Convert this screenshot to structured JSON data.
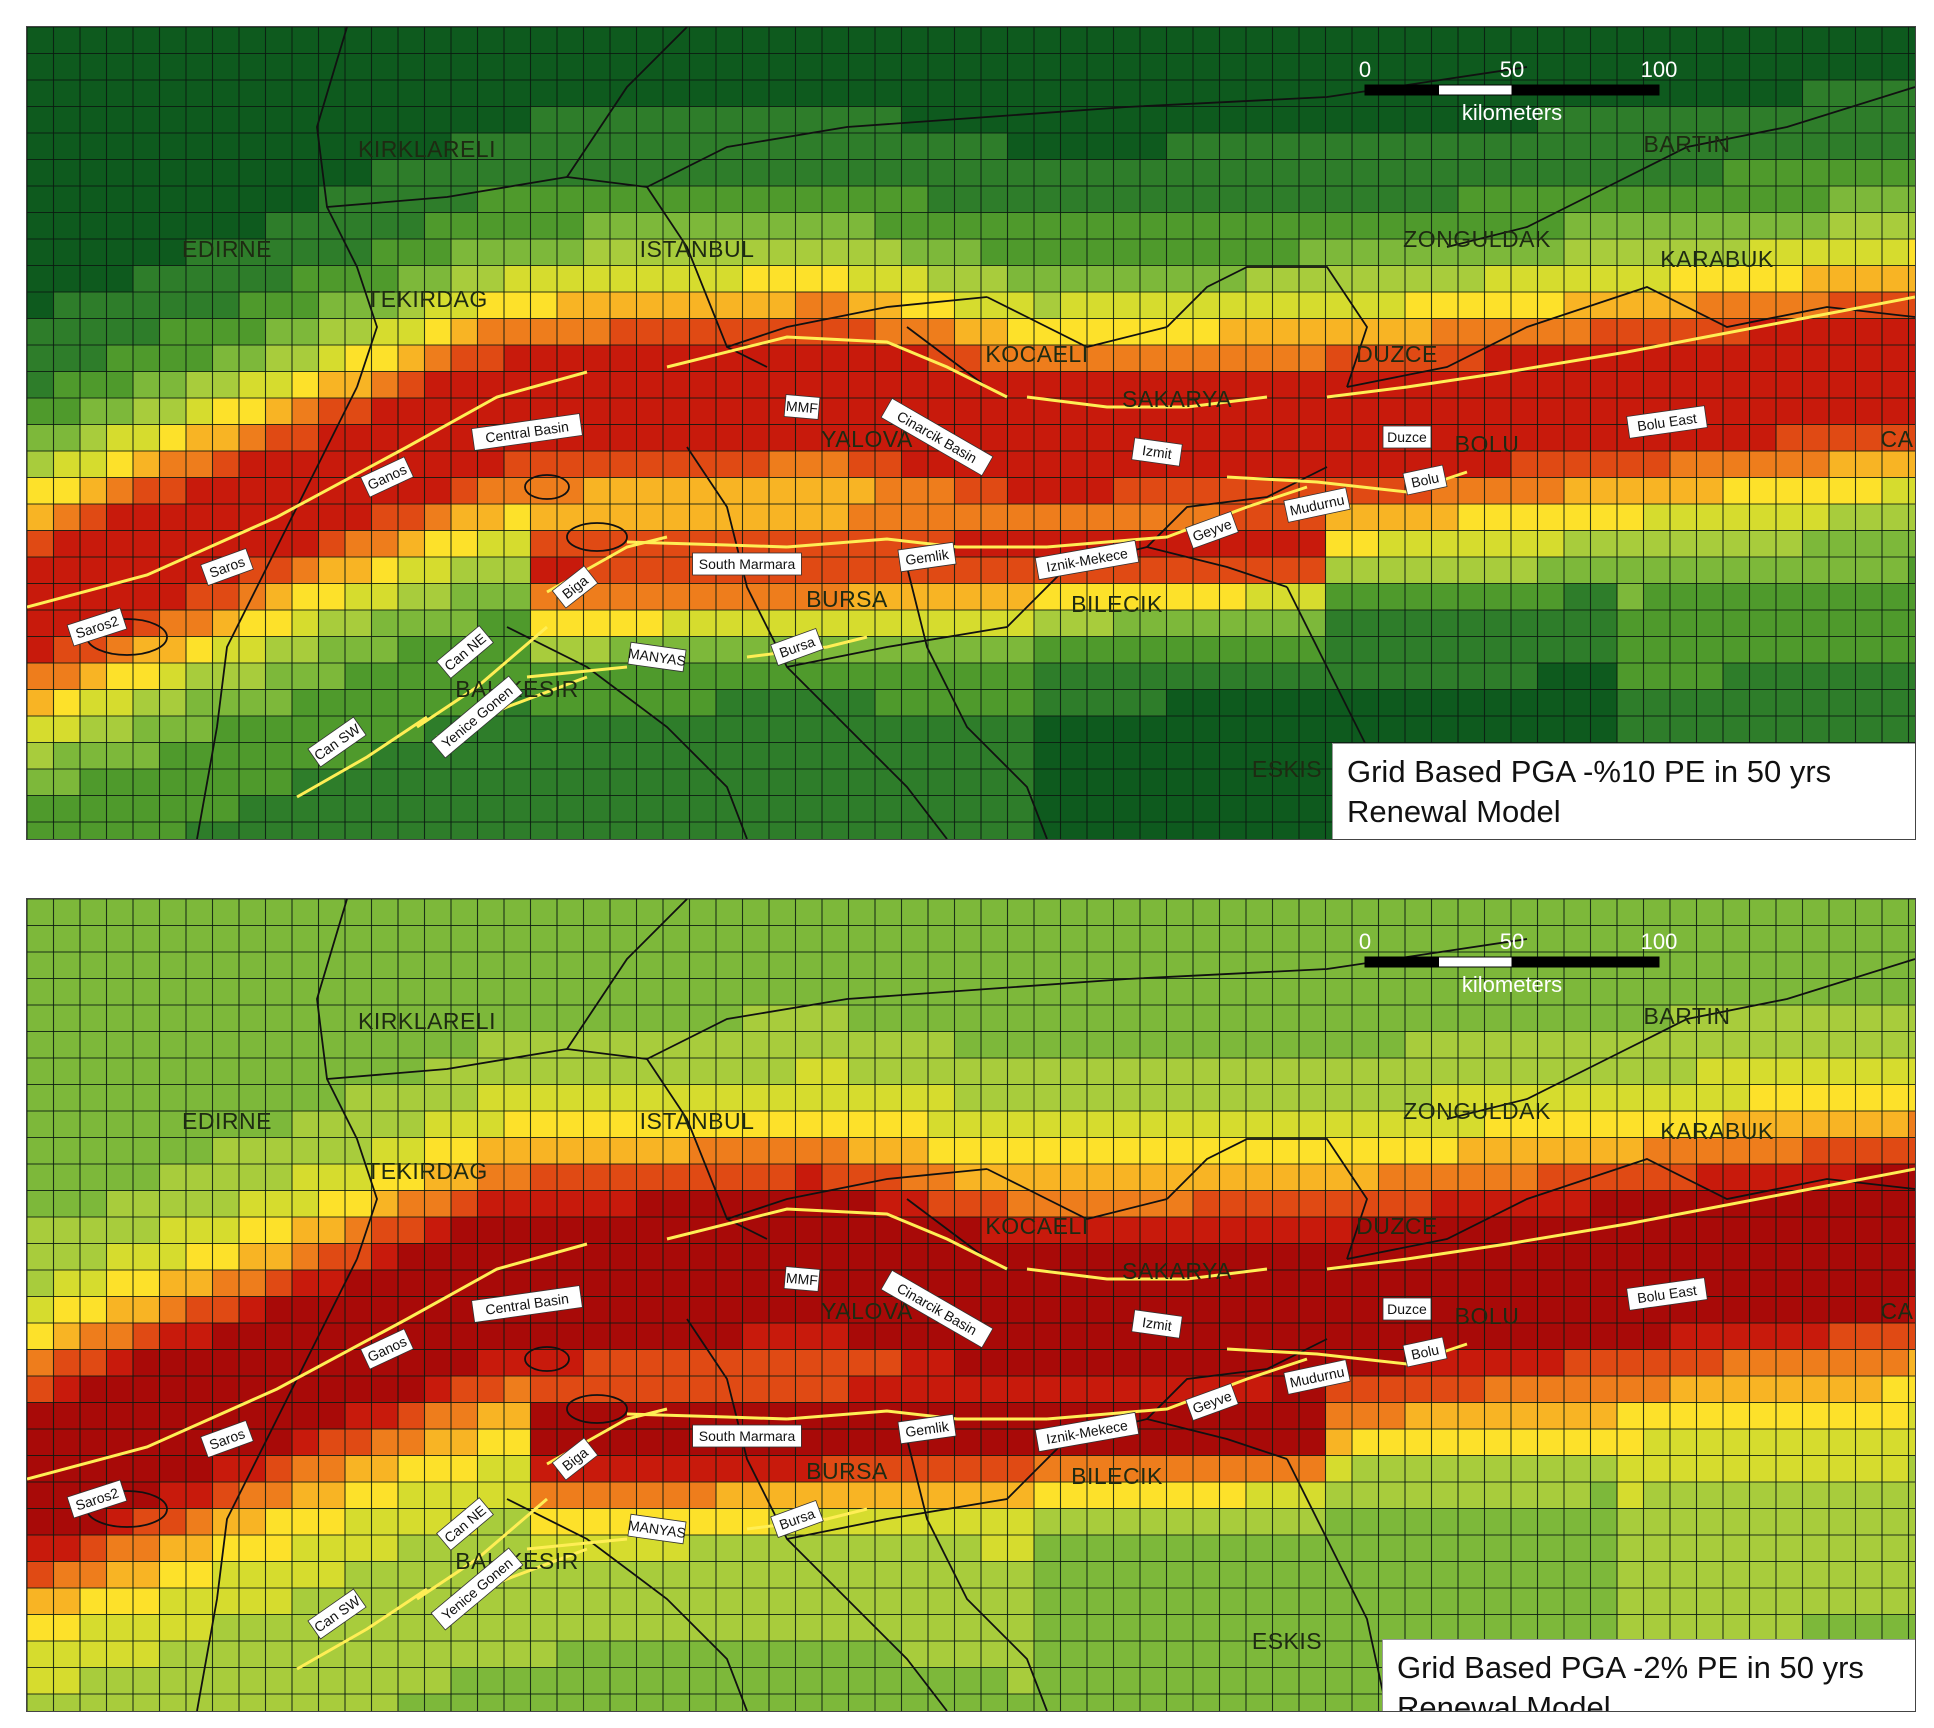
{
  "panels": [
    {
      "id": "top",
      "legend_line1": "Grid Based PGA -%10 PE in 50 yrs",
      "legend_line2": "Renewal Model",
      "intensity": 0
    },
    {
      "id": "bottom",
      "legend_line1": "Grid Based PGA -2% PE in 50 yrs",
      "legend_line2": "Renewal Model",
      "intensity": 1
    }
  ],
  "scale_bar": {
    "ticks": [
      "0",
      "50",
      "100"
    ],
    "unit": "kilometers"
  },
  "provinces": [
    "KIRKLARELI",
    "EDIRNE",
    "ISTANBUL",
    "TEKIRDAG",
    "KOCAELI",
    "SAKARYA",
    "DUZCE",
    "BOLU",
    "YALOVA",
    "BURSA",
    "BILECIK",
    "BALIKESIR",
    "BARTIN",
    "ZONGULDAK",
    "KARABUK",
    "ESKIS",
    "CA"
  ],
  "faults": [
    "Saros2",
    "Saros",
    "Ganos",
    "Central Basin",
    "MMF",
    "Cinarcik Basin",
    "Izmit",
    "Duzce",
    "Bolu East",
    "Bolu",
    "Mudurnu",
    "Geyve",
    "Iznik-Mekece",
    "Gemlik",
    "South Marmara",
    "Biga",
    "Can NE",
    "Can SW",
    "Yenice Gonen",
    "MANYAS",
    "Bursa"
  ],
  "colors": {
    "scale": [
      "#0e5a1e",
      "#2e7d2a",
      "#4f9a2c",
      "#7db83a",
      "#a8cc3c",
      "#d6dc2e",
      "#fde12a",
      "#f8b424",
      "#ee7d1c",
      "#e04a14",
      "#c81a0c",
      "#a80a08"
    ],
    "grid_line": "#0a1a10",
    "boundary": "#111111",
    "fault_trace": "#ffee55"
  }
}
